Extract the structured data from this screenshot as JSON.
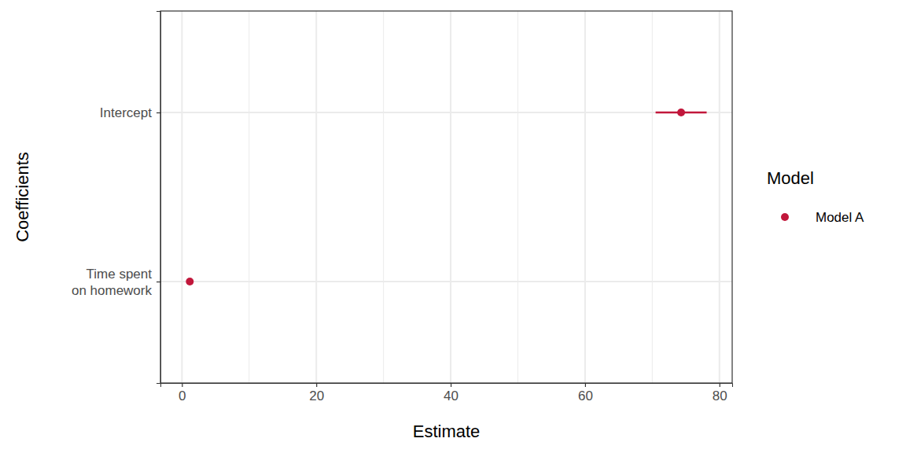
{
  "chart_data": {
    "type": "coefficient",
    "x_label": "Estimate",
    "y_label": "Coefficients",
    "legend_title": "Model",
    "legend": "right",
    "grid": true,
    "orientation": "horizontal",
    "categories": [
      "Intercept",
      "Time spent\non homework"
    ],
    "series": [
      {
        "name": "Model A",
        "color": "#c1173b",
        "marker": "circle",
        "values": [
          74.3,
          1.17
        ],
        "ci_low": [
          70.5,
          0.9
        ],
        "ci_high": [
          78.1,
          1.45
        ]
      }
    ],
    "xlim": [
      -3.2,
      81.9
    ],
    "xticks": [
      0,
      20,
      40,
      60,
      80
    ]
  }
}
